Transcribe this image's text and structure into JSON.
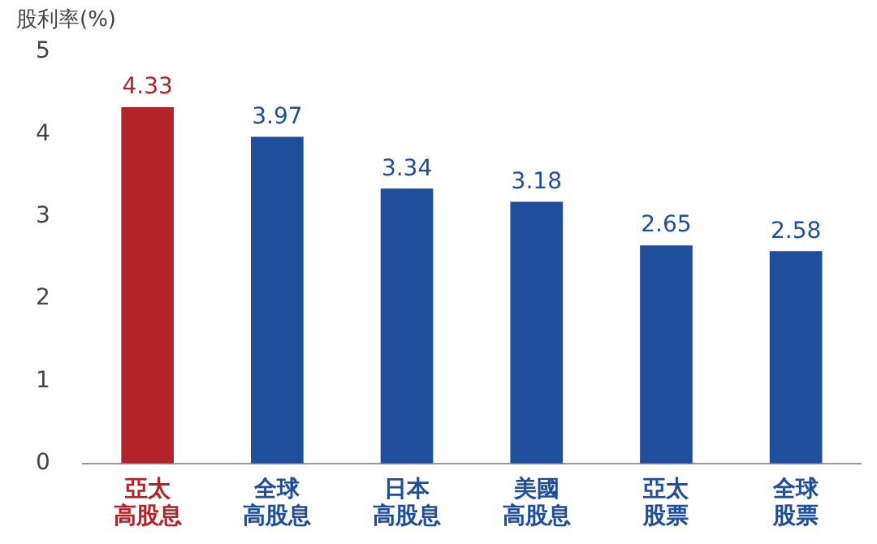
{
  "chart_data": {
    "type": "bar",
    "ylabel": "股利率(%)",
    "categories": [
      "亞太高股息",
      "全球高股息",
      "日本高股息",
      "美國高股息",
      "亞太股票",
      "全球股票"
    ],
    "values": [
      4.33,
      3.97,
      3.34,
      3.18,
      2.65,
      2.58
    ],
    "colors": [
      "#b3232a",
      "#1f4e9c",
      "#1f4e9c",
      "#1f4e9c",
      "#1f4e9c",
      "#1f4e9c"
    ],
    "ylim": [
      0,
      5
    ],
    "yticks": [
      0,
      1,
      2,
      3,
      4,
      5
    ],
    "grid": false,
    "legend": false,
    "data_labels": true
  }
}
